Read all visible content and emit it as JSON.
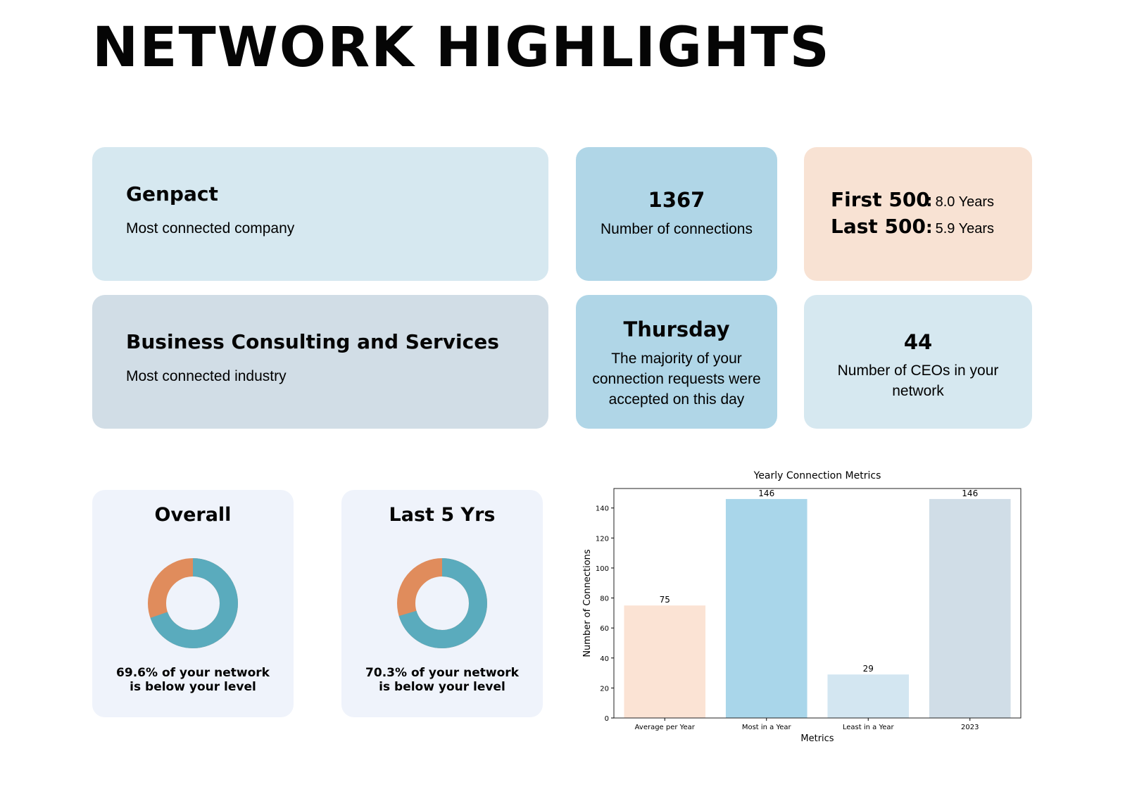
{
  "page": {
    "title": "NETWORK HIGHLIGHTS"
  },
  "company": {
    "value": "Genpact",
    "label": "Most connected company"
  },
  "industry": {
    "value": "Business Consulting and Services",
    "label": "Most connected industry"
  },
  "connections": {
    "value": "1367",
    "label": "Number of connections"
  },
  "tenure": {
    "first_key": "First 500",
    "first_value": "8.0 Years",
    "last_key": "Last 500",
    "last_value": "5.9 Years",
    "separator": ":"
  },
  "accept_day": {
    "value": "Thursday",
    "label": "The majority of your connection requests were accepted on this day"
  },
  "ceos": {
    "value": "44",
    "label": "Number of CEOs in your network"
  },
  "overall": {
    "title": "Overall",
    "below_fraction": 0.696,
    "caption_line1": "69.6% of your network",
    "caption_line2": "is below your level"
  },
  "last5": {
    "title": "Last 5 Yrs",
    "below_fraction": 0.703,
    "caption_line1": "70.3% of your network",
    "caption_line2": "is below your level"
  },
  "colors": {
    "donut_below": "#5aabbd",
    "donut_above": "#e08c5c"
  },
  "chart_data": {
    "type": "bar",
    "title": "Yearly Connection Metrics",
    "xlabel": "Metrics",
    "ylabel": "Number of Connections",
    "categories": [
      "Average per Year",
      "Most in a Year",
      "Least in a Year",
      "2023"
    ],
    "values": [
      75,
      146,
      29,
      146
    ],
    "data_labels": [
      "75",
      "146",
      "29",
      "146"
    ],
    "colors": [
      "#fbe3d4",
      "#a9d6ea",
      "#d3e6f1",
      "#d0dde7"
    ],
    "ylim": [
      0,
      153
    ],
    "yticks": [
      0,
      20,
      40,
      60,
      80,
      100,
      120,
      140
    ],
    "grid": false,
    "legend": "none"
  }
}
